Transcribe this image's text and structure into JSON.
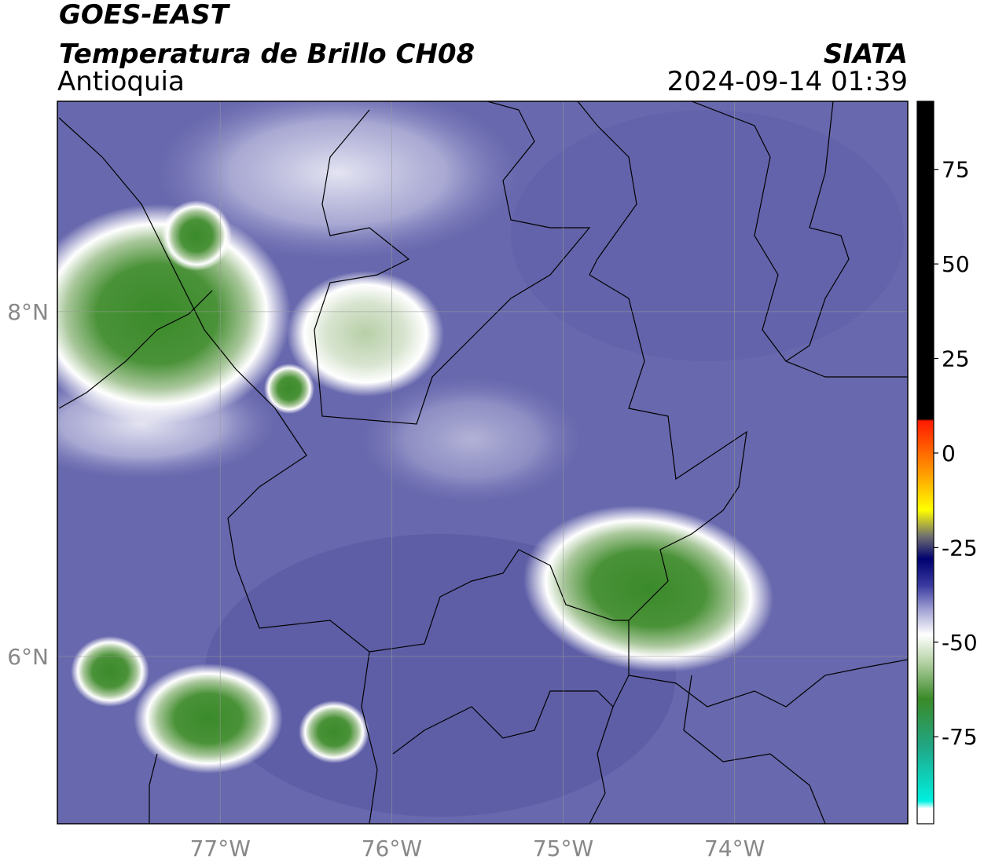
{
  "header": {
    "line1": "GOES-EAST",
    "title": "Temperatura de Brillo CH08",
    "region": "Antioquia",
    "source": "SIATA",
    "datetime": "2024-09-14 01:39"
  },
  "map": {
    "xlim": [
      -77.95,
      -72.99
    ],
    "ylim": [
      5.03,
      9.22
    ],
    "xticks": [
      {
        "value": -77,
        "label": "77°W"
      },
      {
        "value": -76,
        "label": "76°W"
      },
      {
        "value": -75,
        "label": "75°W"
      },
      {
        "value": -74,
        "label": "74°W"
      }
    ],
    "yticks": [
      {
        "value": 8,
        "label": "8°N"
      },
      {
        "value": 6,
        "label": "6°N"
      }
    ],
    "grid": true
  },
  "colorbar": {
    "lim": [
      -98,
      93
    ],
    "ticks": [
      75,
      50,
      25,
      0,
      -25,
      -50,
      -75
    ],
    "stops": [
      {
        "value": 93,
        "color": "#000000"
      },
      {
        "value": 9,
        "color": "#000000"
      },
      {
        "value": 8.5,
        "color": "#ff1a00"
      },
      {
        "value": -5,
        "color": "#ff9900"
      },
      {
        "value": -15,
        "color": "#ffff00"
      },
      {
        "value": -22,
        "color": "#707070"
      },
      {
        "value": -28,
        "color": "#000070"
      },
      {
        "value": -35,
        "color": "#3a3aa0"
      },
      {
        "value": -42,
        "color": "#aaaad8"
      },
      {
        "value": -48,
        "color": "#ffffff"
      },
      {
        "value": -55,
        "color": "#b8d4a8"
      },
      {
        "value": -65,
        "color": "#3a8a28"
      },
      {
        "value": -78,
        "color": "#20a888"
      },
      {
        "value": -92,
        "color": "#00f0e0"
      },
      {
        "value": -94,
        "color": "#ffffff"
      },
      {
        "value": -98,
        "color": "#ffffff"
      }
    ]
  }
}
